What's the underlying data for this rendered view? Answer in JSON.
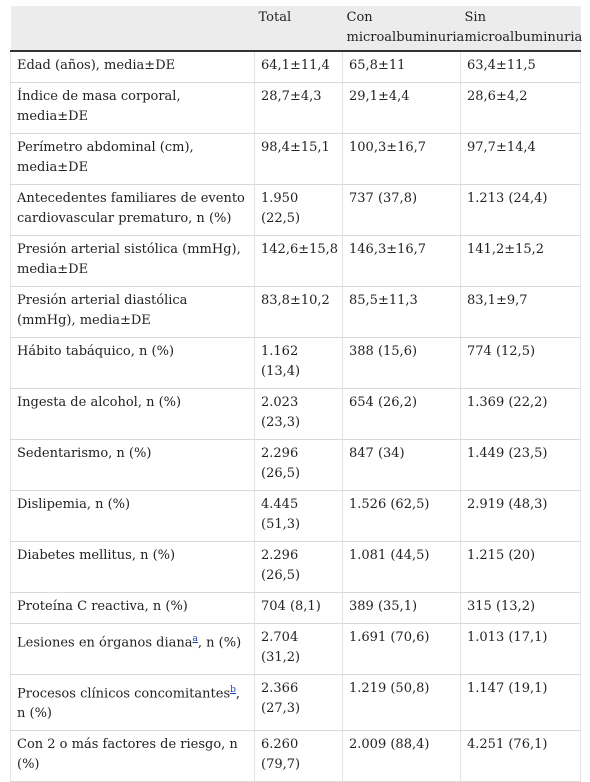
{
  "table": {
    "headers": [
      "",
      "Total",
      "Con microalbuminuria",
      "Sin microalbuminuria"
    ],
    "rows": [
      {
        "label": "Edad (años), media±DE",
        "total": "64,1±11,4",
        "con": "65,8±11",
        "sin": "63,4±11,5"
      },
      {
        "label": "Índice de masa corporal, media±DE",
        "total": "28,7±4,3",
        "con": "29,1±4,4",
        "sin": "28,6±4,2"
      },
      {
        "label": "Perímetro abdominal (cm), media±DE",
        "total": "98,4±15,1",
        "con": "100,3±16,7",
        "sin": "97,7±14,4"
      },
      {
        "label": "Antecedentes familiares de evento cardiovascular prematuro, n (%)",
        "total": "1.950 (22,5)",
        "con": "737 (37,8)",
        "sin": "1.213 (24,4)"
      },
      {
        "label": "Presión arterial sistólica (mmHg), media±DE",
        "total": "142,6±15,8",
        "con": "146,3±16,7",
        "sin": "141,2±15,2"
      },
      {
        "label": "Presión arterial diastólica (mmHg), media±DE",
        "total": "83,8±10,2",
        "con": "85,5±11,3",
        "sin": "83,1±9,7"
      },
      {
        "label": "Hábito tabáquico, n (%)",
        "total": "1.162 (13,4)",
        "con": "388 (15,6)",
        "sin": "774 (12,5)"
      },
      {
        "label": "Ingesta de alcohol, n (%)",
        "total": "2.023 (23,3)",
        "con": "654 (26,2)",
        "sin": "1.369 (22,2)"
      },
      {
        "label": "Sedentarismo, n (%)",
        "total": "2.296 (26,5)",
        "con": "847 (34)",
        "sin": "1.449 (23,5)"
      },
      {
        "label": "Dislipemia, n (%)",
        "total": "4.445 (51,3)",
        "con": "1.526 (62,5)",
        "sin": "2.919 (48,3)"
      },
      {
        "label": "Diabetes mellitus, n (%)",
        "total": "2.296 (26,5)",
        "con": "1.081 (44,5)",
        "sin": "1.215 (20)"
      },
      {
        "label": "Proteína C reactiva, n (%)",
        "total": "704 (8,1)",
        "con": "389 (35,1)",
        "sin": "315 (13,2)"
      },
      {
        "label_pre": "Lesiones en órganos diana",
        "footnote": "a",
        "label_post": ", n (%)",
        "total": "2.704 (31,2)",
        "con": "1.691 (70,6)",
        "sin": "1.013 (17,1)"
      },
      {
        "label_pre": "Procesos clínicos concomitantes",
        "footnote": "b",
        "label_post": ", n (%)",
        "total": "2.366 (27,3)",
        "con": "1.219 (50,8)",
        "sin": "1.147 (19,1)"
      },
      {
        "label": "Con 2 o más factores de riesgo, n (%)",
        "total": "6.260 (79,7)",
        "con": "2.009 (88,4)",
        "sin": "4.251 (76,1)"
      }
    ]
  }
}
